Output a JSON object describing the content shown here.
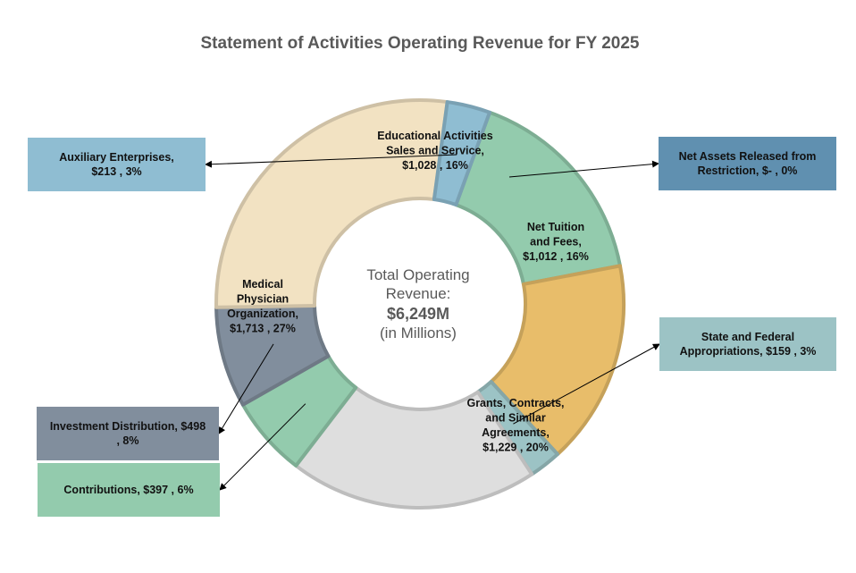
{
  "chart_data": {
    "type": "pie",
    "subtype": "donut",
    "title": "Statement of Activities Operating Revenue for FY 2025",
    "center_text": [
      "Total Operating",
      "Revenue:",
      "$6,249M",
      "(in Millions)"
    ],
    "slices": [
      {
        "name": "Educational Activities Sales and Service",
        "value": 1028,
        "percent": 16,
        "color": "#93cbad",
        "label": [
          "Educational Activities",
          "Sales and Service,",
          "$1,028 , 16%"
        ]
      },
      {
        "name": "Net Tuition and Fees",
        "value": 1012,
        "percent": 16,
        "color": "#e8bd6a",
        "label": [
          "Net Tuition",
          "and Fees,",
          "$1,012 , 16%"
        ]
      },
      {
        "name": "State and Federal Appropriations",
        "value": 159,
        "percent": 3,
        "color": "#9cc3c5",
        "label": [
          "State and Federal",
          "Appropriations,  $159 , 3%"
        ]
      },
      {
        "name": "Grants, Contracts, and Similar Agreements",
        "value": 1229,
        "percent": 20,
        "color": "#dedede",
        "label": [
          "Grants, Contracts,",
          "and Similar",
          "Agreements,",
          "$1,229 , 20%"
        ]
      },
      {
        "name": "Contributions",
        "value": 397,
        "percent": 6,
        "color": "#93cbad",
        "label": [
          "Contributions,  $397 , 6%"
        ]
      },
      {
        "name": "Investment Distribution",
        "value": 498,
        "percent": 8,
        "color": "#818e9d",
        "label": [
          "Investment Distribution,  $498",
          ", 8%"
        ]
      },
      {
        "name": "Medical Physician Organization",
        "value": 1713,
        "percent": 27,
        "color": "#f2e2c2",
        "label": [
          "Medical",
          "Physician",
          "Organization,",
          "$1,713 , 27%"
        ]
      },
      {
        "name": "Auxiliary Enterprises",
        "value": 213,
        "percent": 3,
        "color": "#8fbdd2",
        "label": [
          "Auxiliary Enterprises,",
          "$213 , 3%"
        ]
      },
      {
        "name": "Net Assets Released from Restriction",
        "value": 0,
        "percent": 0,
        "color": "#6090b0",
        "label": [
          "Net Assets Released from",
          "Restriction,  $- , 0%"
        ]
      }
    ]
  }
}
